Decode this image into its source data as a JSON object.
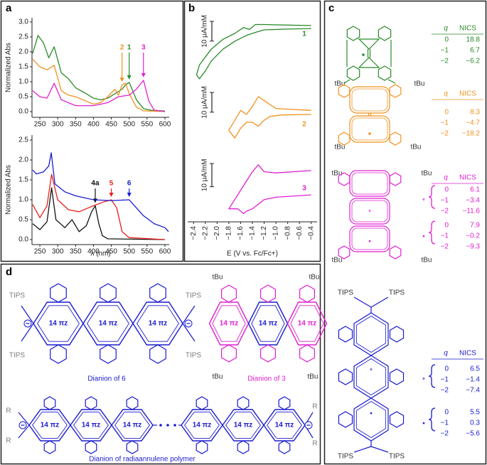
{
  "panel_labels": {
    "a": "a",
    "b": "b",
    "c": "c",
    "d": "d"
  },
  "chart_data": [
    {
      "type": "line",
      "ylabel": "Normalized Abs",
      "xlim": [
        228,
        612
      ],
      "xticks": [
        250,
        300,
        350,
        400,
        450,
        500,
        550,
        600
      ],
      "ylim": [
        -0.19,
        3.14
      ],
      "yticks": [
        {
          "value": 0,
          "label": "0.0"
        },
        0.5,
        {
          "value": 1,
          "label": "1.0"
        },
        1.5,
        {
          "value": 2,
          "label": "2.0"
        },
        2.5,
        {
          "value": 3,
          "label": "3.0"
        }
      ],
      "series": [
        {
          "name": "1",
          "color": "#2a8a2a",
          "arrow_x": 500,
          "x": [
            230,
            245,
            260,
            275,
            290,
            310,
            330,
            350,
            380,
            400,
            420,
            440,
            460,
            480,
            490,
            500,
            510,
            520,
            540,
            560,
            600
          ],
          "values": [
            1.95,
            2.55,
            2.3,
            1.8,
            2.17,
            1.3,
            1.1,
            0.8,
            0.6,
            0.45,
            0.4,
            0.45,
            0.6,
            0.75,
            0.9,
            0.98,
            0.7,
            0.4,
            0.1,
            0.05,
            0.02
          ]
        },
        {
          "name": "2",
          "color": "#f0921e",
          "arrow_x": 480,
          "x": [
            230,
            250,
            270,
            290,
            310,
            330,
            350,
            380,
            400,
            420,
            440,
            460,
            470,
            480,
            490,
            500,
            520,
            540,
            600
          ],
          "values": [
            1.75,
            1.5,
            1.4,
            1.55,
            0.7,
            0.55,
            0.5,
            0.35,
            0.25,
            0.3,
            0.5,
            0.75,
            0.55,
            0.9,
            0.95,
            0.6,
            0.15,
            0.03,
            0
          ]
        },
        {
          "name": "3",
          "color": "#e020d0",
          "arrow_x": 540,
          "x": [
            230,
            250,
            270,
            290,
            310,
            350,
            400,
            440,
            470,
            500,
            520,
            540,
            555,
            570,
            600
          ],
          "values": [
            0.7,
            0.5,
            0.45,
            0.95,
            0.4,
            0.2,
            0.2,
            0.3,
            0.5,
            0.55,
            0.75,
            1.05,
            0.35,
            0.05,
            0
          ]
        }
      ]
    },
    {
      "type": "line",
      "ylabel": "Normalized Abs",
      "xlabel": "λ (nm)",
      "xlim": [
        228,
        612
      ],
      "xticks": [
        250,
        300,
        350,
        400,
        450,
        500,
        550,
        600
      ],
      "ylim": [
        -0.125,
        2.625
      ],
      "yticks": [
        {
          "value": 0,
          "label": "0.0"
        },
        0.5,
        {
          "value": 1,
          "label": "1.0"
        },
        1.5,
        {
          "value": 2,
          "label": "2.0"
        },
        2.5
      ],
      "series": [
        {
          "name": "4a",
          "color": "#111111",
          "arrow_x": 405,
          "x": [
            230,
            250,
            270,
            283,
            295,
            320,
            340,
            360,
            380,
            395,
            405,
            415,
            425,
            440,
            600
          ],
          "values": [
            0.4,
            0.25,
            0.45,
            1.3,
            0.5,
            0.3,
            0.5,
            0.2,
            0.35,
            0.7,
            0.85,
            0.4,
            0.1,
            0.02,
            0
          ]
        },
        {
          "name": "5",
          "color": "#e8201a",
          "arrow_x": 450,
          "x": [
            230,
            250,
            270,
            283,
            300,
            330,
            360,
            400,
            430,
            450,
            465,
            480,
            500,
            600
          ],
          "values": [
            0.88,
            0.55,
            0.85,
            1.64,
            1.0,
            0.75,
            0.7,
            0.85,
            0.95,
            1.0,
            0.8,
            0.2,
            0.05,
            0
          ]
        },
        {
          "name": "6",
          "color": "#1a1ad0",
          "arrow_x": 500,
          "x": [
            230,
            240,
            260,
            275,
            282,
            292,
            320,
            350,
            400,
            450,
            500,
            515,
            540,
            570,
            600,
            610
          ],
          "values": [
            1.75,
            1.65,
            1.7,
            1.85,
            2.18,
            1.4,
            1.2,
            1.1,
            1.0,
            0.98,
            1.0,
            0.85,
            0.6,
            0.4,
            0.3,
            0.2
          ]
        }
      ]
    },
    {
      "type": "line",
      "xlim": [
        -2.5,
        -0.3
      ],
      "ylim": [
        -28,
        8
      ],
      "scale_bar": {
        "value": 10,
        "label": "10 μA/mM"
      },
      "series": [
        {
          "name": "1",
          "color": "#2a8a2a",
          "x": [
            -0.4,
            -0.8,
            -1.2,
            -1.35,
            -1.5,
            -1.7,
            -1.9,
            -2.1,
            -2.2,
            -2.3,
            -2.35,
            -2.3,
            -2.1,
            -1.9,
            -1.7,
            -1.55,
            -1.45,
            -1.35,
            -1.2,
            -0.8,
            -0.4
          ],
          "values": [
            1.5,
            1.2,
            0.8,
            -0.5,
            -2,
            -5,
            -9,
            -15,
            -20,
            -24,
            -22,
            -17,
            -9,
            -4,
            -1,
            2,
            1,
            3.5,
            3.5,
            3.2,
            3
          ]
        }
      ]
    },
    {
      "type": "line",
      "xlim": [
        -2.5,
        -0.3
      ],
      "ylim": [
        -22,
        14
      ],
      "scale_bar": {
        "value": 10,
        "label": "10 μA/mM"
      },
      "series": [
        {
          "name": "2",
          "color": "#f0921e",
          "x": [
            -0.4,
            -0.9,
            -1.1,
            -1.2,
            -1.3,
            -1.4,
            -1.5,
            -1.6,
            -1.7,
            -1.75,
            -1.8,
            -1.7,
            -1.6,
            -1.5,
            -1.4,
            -1.3,
            -1.2,
            -1.0,
            -0.4
          ],
          "values": [
            0,
            -0.3,
            -1,
            -3,
            -6,
            -4,
            -4,
            -7,
            -12,
            -10,
            -8,
            -3,
            2,
            0,
            4,
            9,
            7,
            3,
            2
          ]
        }
      ]
    },
    {
      "type": "line",
      "xlim": [
        -2.5,
        -0.3
      ],
      "ylim": [
        -17,
        10
      ],
      "xlabel": "E (V vs. Fc/Fc+)",
      "scale_bar": {
        "value": 10,
        "label": "10 μA/mM"
      },
      "xticks": [
        {
          "value": -2.4,
          "label": "−2.4"
        },
        {
          "value": -2.2,
          "label": "−2.2"
        },
        {
          "value": -2.0,
          "label": "−2.0"
        },
        {
          "value": -1.8,
          "label": "−1.8"
        },
        {
          "value": -1.6,
          "label": "−1.6"
        },
        {
          "value": -1.4,
          "label": "−1.4"
        },
        {
          "value": -1.2,
          "label": "−1.2"
        },
        {
          "value": -1.0,
          "label": "−1.0"
        },
        {
          "value": -0.8,
          "label": "−0.8"
        },
        {
          "value": -0.6,
          "label": "−0.6"
        },
        {
          "value": -0.4,
          "label": "−0.4"
        }
      ],
      "series": [
        {
          "name": "3",
          "color": "#e020d0",
          "x": [
            -0.4,
            -1.0,
            -1.2,
            -1.3,
            -1.4,
            -1.5,
            -1.55,
            -1.65,
            -1.8,
            -1.7,
            -1.6,
            -1.5,
            -1.4,
            -1.3,
            -1.2,
            -1.0,
            -0.4
          ],
          "values": [
            -6,
            -7,
            -8,
            -10,
            -12,
            -13,
            -14,
            -12,
            -12,
            -8,
            -4,
            0,
            4,
            7,
            4,
            3.5,
            4.5
          ]
        }
      ]
    }
  ],
  "panel_c": {
    "molecules": [
      {
        "color": "#2a8a2a",
        "header": [
          "q",
          "NICS"
        ],
        "substituents": [
          "tBu",
          "tBu"
        ],
        "tables": [
          {
            "rows": [
              [
                "0",
                "18.8"
              ],
              [
                "−1",
                "6.7"
              ],
              [
                "−2",
                "−6.2"
              ]
            ]
          }
        ]
      },
      {
        "color": "#f0921e",
        "header": [
          "q",
          "NICS"
        ],
        "substituents": [
          "tBu",
          "tBu"
        ],
        "tables": [
          {
            "rows": [
              [
                "0",
                "8.3"
              ],
              [
                "−1",
                "−4.7"
              ],
              [
                "−2",
                "−18.2"
              ]
            ]
          }
        ]
      },
      {
        "color": "#e020d0",
        "header": [
          "q",
          "NICS"
        ],
        "substituents": [
          "tBu",
          "tBu",
          "tBu",
          "tBu"
        ],
        "tables": [
          {
            "marker": "*",
            "rows": [
              [
                "0",
                "6.1"
              ],
              [
                "−1",
                "−3.4"
              ],
              [
                "−2",
                "−11.6"
              ]
            ]
          },
          {
            "marker": "•",
            "rows": [
              [
                "0",
                "7.9"
              ],
              [
                "−1",
                "−0.2"
              ],
              [
                "−2",
                "−9.3"
              ]
            ]
          }
        ]
      },
      {
        "color": "#1a1ad0",
        "header": [
          "q",
          "NICS"
        ],
        "substituents": [
          "TIPS",
          "TIPS",
          "TIPS",
          "TIPS"
        ],
        "tables": [
          {
            "marker": "*",
            "rows": [
              [
                "0",
                "6.5"
              ],
              [
                "−1",
                "−1.4"
              ],
              [
                "−2",
                "−7.4"
              ]
            ]
          },
          {
            "marker": "•",
            "rows": [
              [
                "0",
                "5.5"
              ],
              [
                "−1",
                "0.3"
              ],
              [
                "−2",
                "−5.6"
              ]
            ]
          }
        ]
      }
    ]
  },
  "panel_d": {
    "colors": [
      "#1a1ad0",
      "#e020d0",
      "#7a7a7a"
    ],
    "dianion_6": {
      "caption": "Dianion of 6",
      "ring_labels": [
        "14 πz",
        "14 πz",
        "14 πz"
      ],
      "end_groups": [
        "TIPS",
        "TIPS",
        "TIPS",
        "TIPS"
      ]
    },
    "dianion_3": {
      "caption": "Dianion of 3",
      "ring_labels": [
        "14 πz",
        "14 πz",
        "14 πz"
      ],
      "end_groups": [
        "tBu",
        "tBu",
        "tBu",
        "tBu"
      ]
    },
    "polymer": {
      "caption": "Dianion of radiaannulene polymer",
      "ring_labels": [
        "14 πz",
        "14 πz",
        "14 πz",
        "14 πz",
        "14 πz",
        "14 πz"
      ],
      "end_groups": [
        "R",
        "R",
        "R",
        "R"
      ]
    }
  }
}
